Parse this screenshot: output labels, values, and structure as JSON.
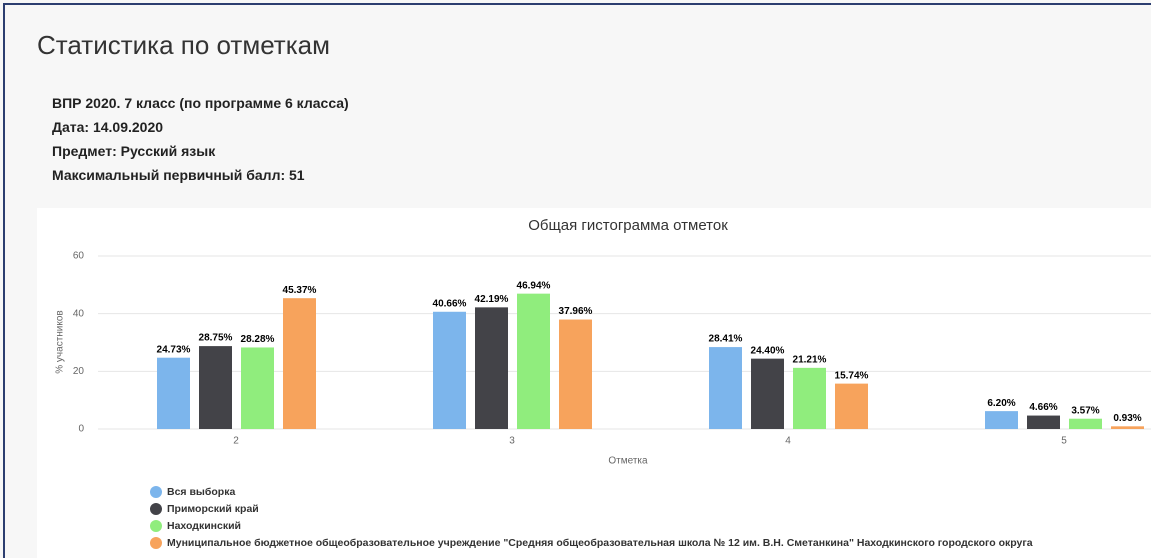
{
  "page": {
    "title": "Статистика по отметкам",
    "info": [
      "ВПР 2020. 7 класс (по программе 6 класса)",
      "Дата: 14.09.2020",
      "Предмет: Русский язык",
      "Максимальный первичный балл: 51"
    ]
  },
  "chart_data": {
    "type": "bar",
    "title": "Общая гистограмма отметок",
    "x_label": "Отметка",
    "y_label": "% участников",
    "categories": [
      "2",
      "3",
      "4",
      "5"
    ],
    "series": [
      {
        "name": "Вся выборка",
        "color": "#7cb5ec",
        "values": [
          24.73,
          40.66,
          28.41,
          6.2
        ],
        "value_labels": [
          "24.73%",
          "40.66%",
          "28.41%",
          "6.20%"
        ]
      },
      {
        "name": "Приморский край",
        "color": "#434348",
        "values": [
          28.75,
          42.19,
          24.4,
          4.66
        ],
        "value_labels": [
          "28.75%",
          "42.19%",
          "24.40%",
          "4.66%"
        ]
      },
      {
        "name": "Находкинский",
        "color": "#90ed7d",
        "values": [
          28.28,
          46.94,
          21.21,
          3.57
        ],
        "value_labels": [
          "28.28%",
          "46.94%",
          "21.21%",
          "3.57%"
        ]
      },
      {
        "name": "Муниципальное бюджетное общеобразовательное учреждение \"Средняя общеобразовательная школа № 12 им. В.Н. Сметанкина\" Находкинского городского округа",
        "color": "#f7a35c",
        "values": [
          45.37,
          37.96,
          15.74,
          0.93
        ],
        "value_labels": [
          "45.37%",
          "37.96%",
          "15.74%",
          "0.93%"
        ]
      }
    ],
    "ylim": [
      0,
      60
    ],
    "yticks": [
      0,
      20,
      40,
      60
    ],
    "grid": true
  }
}
